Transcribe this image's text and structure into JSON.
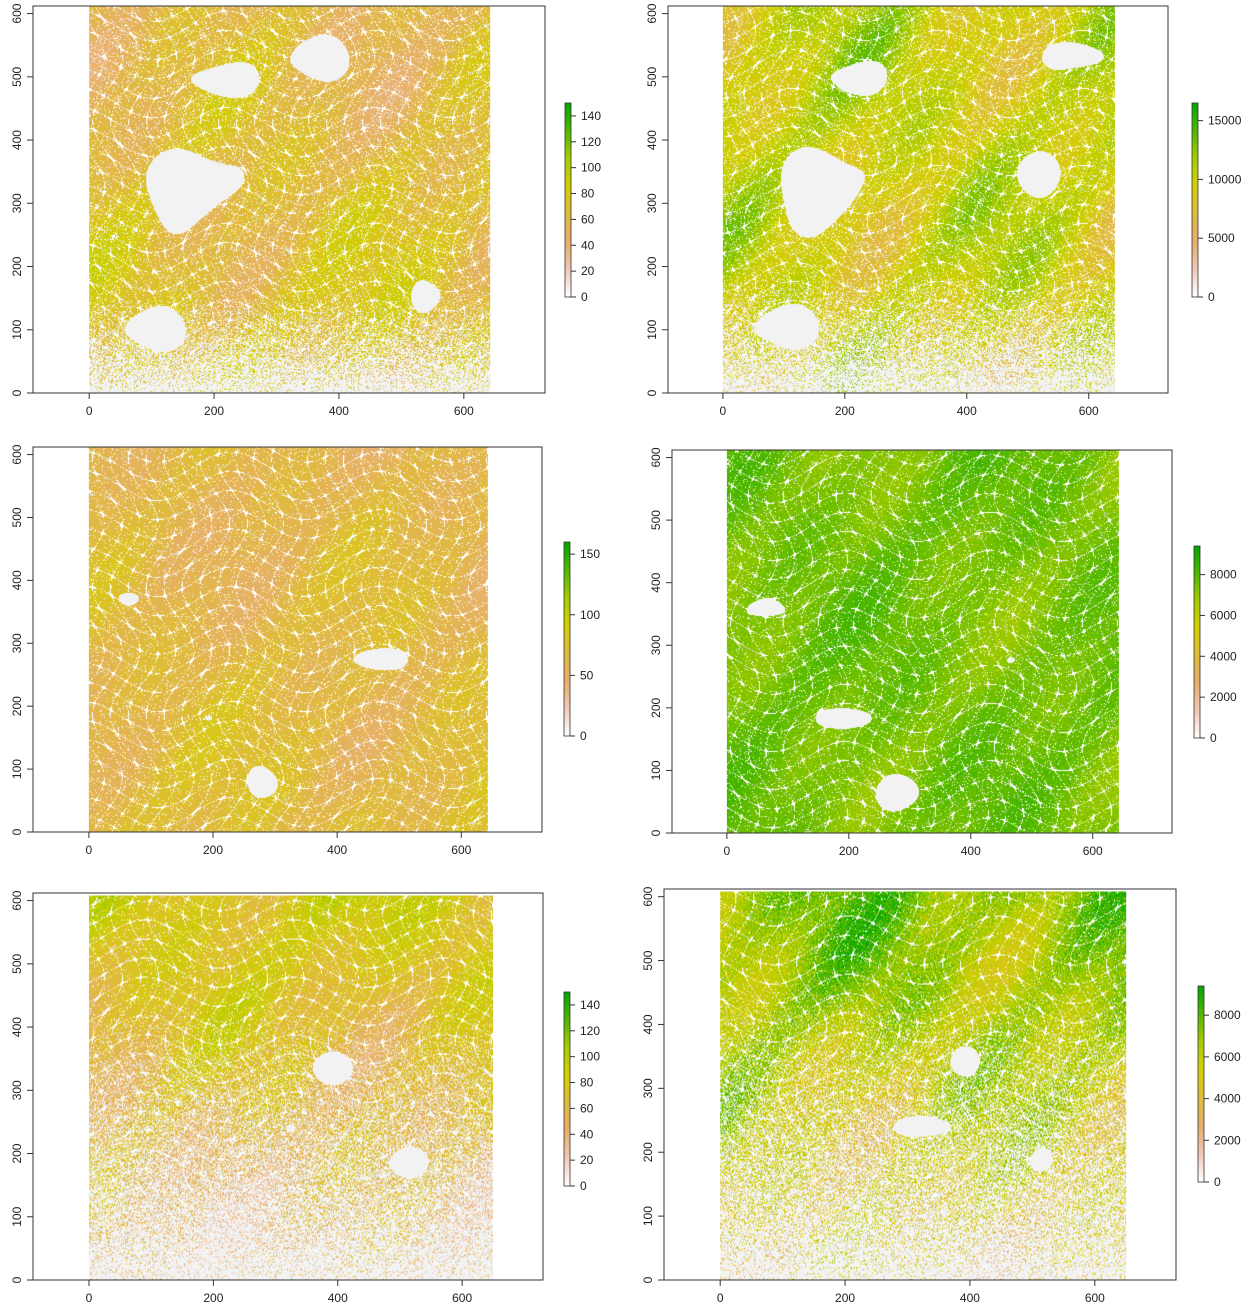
{
  "chart_data": [
    {
      "type": "heatmap",
      "panel": "row-1-left",
      "x_ticks": [
        "0",
        "200",
        "400",
        "600"
      ],
      "y_ticks": [
        "0",
        "100",
        "200",
        "300",
        "400",
        "500",
        "600"
      ],
      "xlim": [
        -90,
        730
      ],
      "ylim": [
        0,
        612
      ],
      "raster_extent": {
        "x": [
          0,
          643
        ],
        "y": [
          0,
          612
        ]
      },
      "legend": {
        "ticks": [
          "0",
          "20",
          "40",
          "60",
          "80",
          "100",
          "120",
          "140"
        ],
        "range": [
          0,
          150
        ],
        "colors": [
          "#ffffff",
          "#f2c7b8",
          "#e8ae6c",
          "#dfbc3a",
          "#d5d000",
          "#a7cc00",
          "#4fb800",
          "#00a600"
        ]
      },
      "data_pattern": {
        "mean": 0.44,
        "spread": 0.1,
        "grad": -0.1,
        "gap": 0.18,
        "grain": 0.35,
        "seed": 11,
        "nodata_frac": 0.16,
        "nodata_bottom": 0.75,
        "gaps": [
          [
            0.25,
            0.48,
            0.12
          ],
          [
            0.15,
            0.82,
            0.07
          ],
          [
            0.33,
            0.2,
            0.06
          ],
          [
            0.56,
            0.12,
            0.07
          ],
          [
            0.85,
            0.75,
            0.05
          ]
        ]
      }
    },
    {
      "type": "heatmap",
      "panel": "row-1-right",
      "x_ticks": [
        "0",
        "200",
        "400",
        "600"
      ],
      "y_ticks": [
        "0",
        "100",
        "200",
        "300",
        "400",
        "500",
        "600"
      ],
      "xlim": [
        -90,
        730
      ],
      "ylim": [
        0,
        612
      ],
      "raster_extent": {
        "x": [
          0,
          643
        ],
        "y": [
          0,
          612
        ]
      },
      "legend": {
        "ticks": [
          "0",
          "5000",
          "10000",
          "15000"
        ],
        "range": [
          0,
          16500
        ],
        "colors": [
          "#ffffff",
          "#f2c7b8",
          "#e8ae6c",
          "#dfbc3a",
          "#d5d000",
          "#a7cc00",
          "#4fb800",
          "#00a600"
        ]
      },
      "data_pattern": {
        "mean": 0.6,
        "spread": 0.14,
        "grad": 0.05,
        "gap": 0.2,
        "grain": 0.3,
        "seed": 23,
        "nodata_frac": 0.16,
        "nodata_bottom": 0.7,
        "gaps": [
          [
            0.25,
            0.48,
            0.12
          ],
          [
            0.15,
            0.82,
            0.07
          ],
          [
            0.33,
            0.2,
            0.06
          ],
          [
            0.8,
            0.45,
            0.06
          ],
          [
            0.9,
            0.12,
            0.05
          ]
        ]
      }
    },
    {
      "type": "heatmap",
      "panel": "row-2-left",
      "x_ticks": [
        "0",
        "200",
        "400",
        "600"
      ],
      "y_ticks": [
        "0",
        "100",
        "200",
        "300",
        "400",
        "500",
        "600"
      ],
      "xlim": [
        -90,
        730
      ],
      "ylim": [
        0,
        612
      ],
      "raster_extent": {
        "x": [
          0,
          643
        ],
        "y": [
          0,
          612
        ]
      },
      "legend": {
        "ticks": [
          "0",
          "50",
          "100",
          "150"
        ],
        "range": [
          0,
          160
        ],
        "colors": [
          "#ffffff",
          "#f2c7b8",
          "#e8ae6c",
          "#dfbc3a",
          "#d5d000",
          "#a7cc00",
          "#4fb800",
          "#00a600"
        ]
      },
      "data_pattern": {
        "mean": 0.4,
        "spread": 0.07,
        "grad": -0.05,
        "gap": 0.14,
        "grain": 0.3,
        "seed": 37,
        "nodata_frac": 0.02,
        "nodata_bottom": 0,
        "gaps": [
          [
            0.1,
            0.4,
            0.05
          ],
          [
            0.45,
            0.88,
            0.05
          ],
          [
            0.72,
            0.55,
            0.04
          ],
          [
            0.3,
            0.7,
            0.04
          ]
        ]
      }
    },
    {
      "type": "heatmap",
      "panel": "row-2-right",
      "x_ticks": [
        "0",
        "200",
        "400",
        "600"
      ],
      "y_ticks": [
        "0",
        "100",
        "200",
        "300",
        "400",
        "500",
        "600"
      ],
      "xlim": [
        -90,
        730
      ],
      "ylim": [
        0,
        612
      ],
      "raster_extent": {
        "x": [
          0,
          643
        ],
        "y": [
          0,
          612
        ]
      },
      "legend": {
        "ticks": [
          "0",
          "2000",
          "4000",
          "6000",
          "8000"
        ],
        "range": [
          0,
          9400
        ],
        "colors": [
          "#ffffff",
          "#f2c7b8",
          "#e8ae6c",
          "#dfbc3a",
          "#d5d000",
          "#a7cc00",
          "#4fb800",
          "#00a600"
        ]
      },
      "data_pattern": {
        "mean": 0.8,
        "spread": 0.05,
        "grad": 0,
        "gap": 0.14,
        "grain": 0.2,
        "seed": 41,
        "nodata_frac": 0,
        "nodata_bottom": 0,
        "gaps": [
          [
            0.1,
            0.4,
            0.05
          ],
          [
            0.45,
            0.88,
            0.05
          ],
          [
            0.72,
            0.55,
            0.04
          ],
          [
            0.3,
            0.7,
            0.04
          ]
        ]
      }
    },
    {
      "type": "heatmap",
      "panel": "row-3-left",
      "x_ticks": [
        "0",
        "200",
        "400",
        "600"
      ],
      "y_ticks": [
        "0",
        "100",
        "200",
        "300",
        "400",
        "500",
        "600"
      ],
      "xlim": [
        -90,
        730
      ],
      "ylim": [
        0,
        612
      ],
      "raster_extent": {
        "x": [
          0,
          650
        ],
        "y": [
          0,
          608
        ]
      },
      "legend": {
        "ticks": [
          "0",
          "20",
          "40",
          "60",
          "80",
          "100",
          "120",
          "140"
        ],
        "range": [
          0,
          150
        ],
        "colors": [
          "#ffffff",
          "#f2c7b8",
          "#e8ae6c",
          "#dfbc3a",
          "#d5d000",
          "#a7cc00",
          "#4fb800",
          "#00a600"
        ]
      },
      "data_pattern": {
        "mean": 0.42,
        "spread": 0.1,
        "grad": 0.25,
        "gap": 0.12,
        "grain": 0.5,
        "seed": 53,
        "nodata_frac": 0.02,
        "nodata_bottom": 0.3,
        "gaps": [
          [
            0.5,
            0.6,
            0.04
          ],
          [
            0.6,
            0.45,
            0.03
          ],
          [
            0.78,
            0.7,
            0.03
          ]
        ]
      }
    },
    {
      "type": "heatmap",
      "panel": "row-3-right",
      "x_ticks": [
        "0",
        "200",
        "400",
        "600"
      ],
      "y_ticks": [
        "0",
        "100",
        "200",
        "300",
        "400",
        "500",
        "600"
      ],
      "xlim": [
        -90,
        730
      ],
      "ylim": [
        0,
        612
      ],
      "raster_extent": {
        "x": [
          0,
          650
        ],
        "y": [
          0,
          608
        ]
      },
      "legend": {
        "ticks": [
          "0",
          "2000",
          "4000",
          "6000",
          "8000"
        ],
        "range": [
          0,
          9400
        ],
        "colors": [
          "#ffffff",
          "#f2c7b8",
          "#e8ae6c",
          "#dfbc3a",
          "#d5d000",
          "#a7cc00",
          "#4fb800",
          "#00a600"
        ]
      },
      "data_pattern": {
        "mean": 0.62,
        "spread": 0.13,
        "grad": 0.32,
        "gap": 0.1,
        "grain": 0.5,
        "seed": 67,
        "nodata_frac": 0.01,
        "nodata_bottom": 0.25,
        "gaps": [
          [
            0.5,
            0.6,
            0.04
          ],
          [
            0.6,
            0.45,
            0.03
          ],
          [
            0.78,
            0.7,
            0.03
          ]
        ]
      }
    }
  ]
}
